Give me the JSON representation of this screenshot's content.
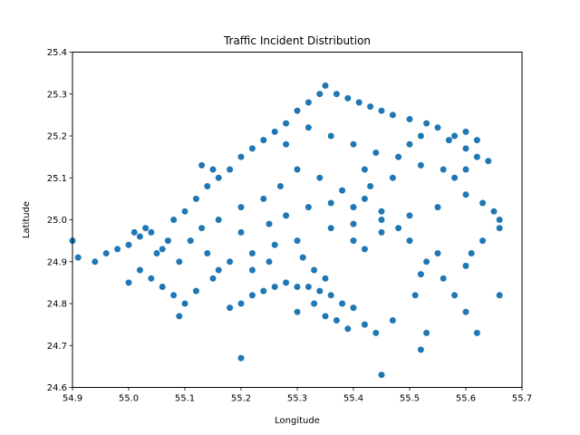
{
  "chart_data": {
    "type": "scatter",
    "title": "Traffic Incident Distribution",
    "xlabel": "Longitude",
    "ylabel": "Latitude",
    "xlim": [
      54.9,
      55.7
    ],
    "ylim": [
      24.6,
      25.4
    ],
    "xticks": [
      "54.9",
      "55.0",
      "55.1",
      "55.2",
      "55.3",
      "55.4",
      "55.5",
      "55.6",
      "55.7"
    ],
    "yticks": [
      "24.6",
      "24.7",
      "24.8",
      "24.9",
      "25.0",
      "25.1",
      "25.2",
      "25.3",
      "25.4"
    ],
    "grid": false,
    "legend": "none",
    "marker_color": "#1f77b4",
    "series": [
      {
        "values": [
          [
            54.9,
            24.95
          ],
          [
            54.91,
            24.91
          ],
          [
            54.94,
            24.9
          ],
          [
            54.96,
            24.92
          ],
          [
            54.98,
            24.93
          ],
          [
            55.0,
            24.94
          ],
          [
            55.02,
            24.96
          ],
          [
            55.04,
            24.97
          ],
          [
            55.05,
            24.92
          ],
          [
            55.07,
            24.95
          ],
          [
            55.08,
            25.0
          ],
          [
            55.1,
            25.02
          ],
          [
            55.12,
            25.05
          ],
          [
            55.14,
            25.08
          ],
          [
            55.15,
            25.12
          ],
          [
            55.13,
            25.13
          ],
          [
            55.16,
            25.1
          ],
          [
            55.18,
            25.12
          ],
          [
            55.2,
            25.15
          ],
          [
            55.22,
            25.17
          ],
          [
            55.24,
            25.19
          ],
          [
            55.26,
            25.21
          ],
          [
            55.28,
            25.23
          ],
          [
            55.3,
            25.26
          ],
          [
            55.32,
            25.28
          ],
          [
            55.34,
            25.3
          ],
          [
            55.35,
            25.32
          ],
          [
            55.37,
            25.3
          ],
          [
            55.39,
            25.29
          ],
          [
            55.41,
            25.28
          ],
          [
            55.43,
            25.27
          ],
          [
            55.45,
            25.26
          ],
          [
            55.47,
            25.25
          ],
          [
            55.5,
            25.24
          ],
          [
            55.53,
            25.23
          ],
          [
            55.55,
            25.22
          ],
          [
            55.58,
            25.2
          ],
          [
            55.6,
            25.17
          ],
          [
            55.62,
            25.15
          ],
          [
            55.64,
            25.14
          ],
          [
            55.32,
            25.22
          ],
          [
            55.36,
            25.2
          ],
          [
            55.4,
            25.18
          ],
          [
            55.44,
            25.16
          ],
          [
            55.48,
            25.15
          ],
          [
            55.52,
            25.13
          ],
          [
            55.56,
            25.12
          ],
          [
            55.28,
            25.18
          ],
          [
            55.3,
            25.12
          ],
          [
            55.34,
            25.1
          ],
          [
            55.38,
            25.07
          ],
          [
            55.42,
            25.05
          ],
          [
            55.45,
            25.02
          ],
          [
            55.48,
            24.98
          ],
          [
            55.5,
            24.95
          ],
          [
            55.53,
            24.9
          ],
          [
            55.56,
            24.86
          ],
          [
            55.58,
            24.82
          ],
          [
            55.6,
            24.78
          ],
          [
            55.62,
            24.73
          ],
          [
            55.6,
            25.06
          ],
          [
            55.63,
            25.04
          ],
          [
            55.65,
            25.02
          ],
          [
            55.66,
            25.0
          ],
          [
            55.66,
            24.98
          ],
          [
            55.55,
            25.03
          ],
          [
            55.5,
            25.01
          ],
          [
            55.45,
            25.0
          ],
          [
            55.4,
            24.99
          ],
          [
            55.36,
            24.98
          ],
          [
            55.3,
            24.95
          ],
          [
            55.26,
            24.94
          ],
          [
            55.22,
            24.92
          ],
          [
            55.18,
            24.9
          ],
          [
            55.15,
            24.86
          ],
          [
            55.12,
            24.83
          ],
          [
            55.1,
            24.8
          ],
          [
            55.08,
            24.82
          ],
          [
            55.06,
            24.84
          ],
          [
            55.04,
            24.86
          ],
          [
            55.02,
            24.88
          ],
          [
            55.0,
            24.85
          ],
          [
            55.09,
            24.77
          ],
          [
            55.18,
            24.79
          ],
          [
            55.2,
            24.8
          ],
          [
            55.22,
            24.82
          ],
          [
            55.24,
            24.83
          ],
          [
            55.26,
            24.84
          ],
          [
            55.28,
            24.85
          ],
          [
            55.3,
            24.84
          ],
          [
            55.32,
            24.84
          ],
          [
            55.34,
            24.83
          ],
          [
            55.36,
            24.82
          ],
          [
            55.38,
            24.8
          ],
          [
            55.4,
            24.79
          ],
          [
            55.42,
            24.75
          ],
          [
            55.44,
            24.73
          ],
          [
            55.47,
            24.76
          ],
          [
            55.3,
            24.78
          ],
          [
            55.33,
            24.8
          ],
          [
            55.35,
            24.77
          ],
          [
            55.37,
            24.76
          ],
          [
            55.39,
            24.74
          ],
          [
            55.2,
            24.67
          ],
          [
            55.45,
            24.63
          ],
          [
            55.52,
            24.69
          ],
          [
            55.53,
            24.73
          ],
          [
            55.51,
            24.82
          ],
          [
            55.52,
            24.87
          ],
          [
            55.55,
            24.92
          ],
          [
            55.6,
            24.89
          ],
          [
            55.61,
            24.92
          ],
          [
            55.63,
            24.95
          ],
          [
            55.66,
            24.82
          ],
          [
            55.2,
            24.97
          ],
          [
            55.25,
            24.99
          ],
          [
            55.28,
            25.01
          ],
          [
            55.32,
            25.03
          ],
          [
            55.36,
            25.04
          ],
          [
            55.4,
            25.03
          ],
          [
            55.43,
            25.08
          ],
          [
            55.42,
            25.12
          ],
          [
            55.47,
            25.1
          ],
          [
            55.5,
            25.18
          ],
          [
            55.52,
            25.2
          ],
          [
            55.57,
            25.19
          ],
          [
            55.6,
            25.21
          ],
          [
            55.62,
            25.19
          ],
          [
            55.58,
            25.1
          ],
          [
            55.6,
            25.12
          ],
          [
            55.22,
            24.88
          ],
          [
            55.25,
            24.9
          ],
          [
            55.33,
            24.88
          ],
          [
            55.35,
            24.86
          ],
          [
            55.31,
            24.91
          ],
          [
            55.4,
            24.95
          ],
          [
            55.42,
            24.93
          ],
          [
            55.45,
            24.97
          ],
          [
            55.27,
            25.08
          ],
          [
            55.24,
            25.05
          ],
          [
            55.2,
            25.03
          ],
          [
            55.16,
            25.0
          ],
          [
            55.13,
            24.98
          ],
          [
            55.11,
            24.95
          ],
          [
            55.14,
            24.92
          ],
          [
            55.16,
            24.88
          ],
          [
            55.09,
            24.9
          ],
          [
            55.06,
            24.93
          ],
          [
            55.03,
            24.98
          ],
          [
            55.01,
            24.97
          ]
        ]
      }
    ]
  }
}
